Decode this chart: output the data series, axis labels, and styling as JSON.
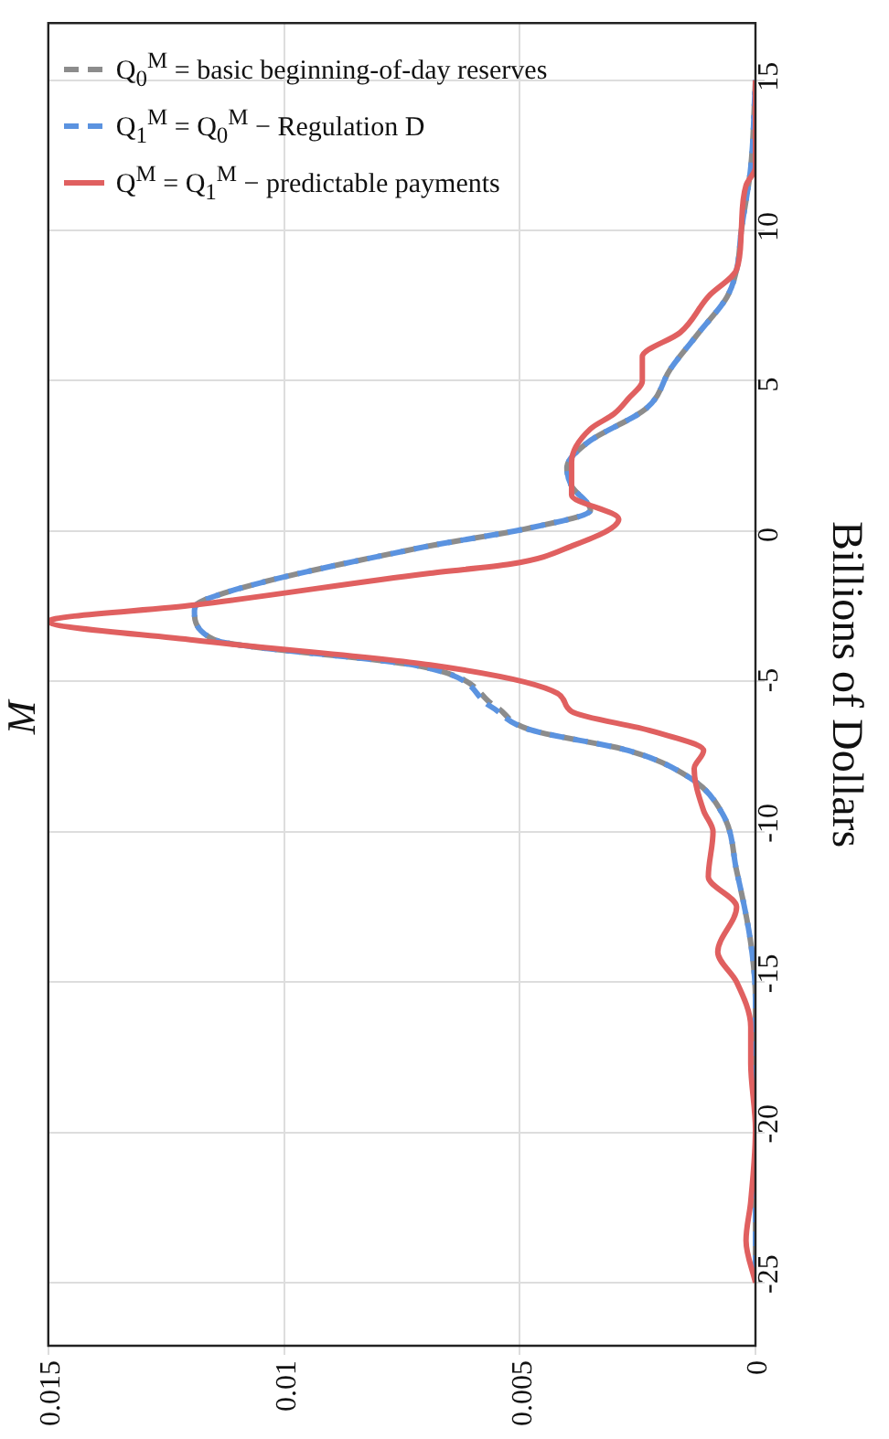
{
  "chart_data": {
    "type": "line",
    "title": "M",
    "ylabel": "Billions of Dollars",
    "ylim": [
      -27.1,
      16.9
    ],
    "yticks": [
      -25,
      -20,
      -15,
      -10,
      -5,
      0,
      5,
      10,
      15
    ],
    "xlim": [
      0.015,
      0
    ],
    "xticks": [
      0.015,
      0.01,
      0.005,
      0
    ],
    "grid": true,
    "legend": "top left",
    "marker": "none",
    "series": [
      {
        "name": "Q$_{0}$$^{M}$ = basic beginning-of-day reserves",
        "color": "#8c8c8c",
        "line_style": "dashed",
        "values": [
          -25,
          -15.6,
          -13.7,
          -11.3,
          -9.4,
          -8.2,
          -7.3,
          -6.6,
          -5.85,
          -4.5,
          -3.6,
          -2.65,
          -2.3,
          -0.55,
          0.1,
          0.7,
          1.5,
          2.1,
          2.9,
          4.1,
          5.4,
          6.6,
          7.8,
          8.7,
          10,
          12.1,
          15
        ],
        "x": [
          0,
          0,
          0.0001,
          0.0004,
          0.0007,
          0.0014,
          0.0027,
          0.0048,
          0.0055,
          0.0071,
          0.0115,
          0.0119,
          0.0117,
          0.0071,
          0.0048,
          0.0035,
          0.0039,
          0.004,
          0.0036,
          0.0023,
          0.0018,
          0.0012,
          0.0006,
          0.0004,
          0.0003,
          0.0001,
          0
        ]
      },
      {
        "name": "Q$_{1}$$^{M}$ = Q$_{0}$$^{M}$ − Regulation D",
        "color": "#5b93e0",
        "line_style": "dashed",
        "values": [
          -25,
          -15.6,
          -13.7,
          -11.3,
          -9.4,
          -8.2,
          -7.3,
          -6.6,
          -5.85,
          -4.5,
          -3.6,
          -2.65,
          -2.3,
          -0.55,
          0.1,
          0.7,
          1.5,
          2.1,
          2.9,
          4.1,
          5.4,
          6.6,
          7.8,
          8.7,
          10,
          12.1,
          15
        ],
        "x": [
          0,
          0,
          0.0001,
          0.0004,
          0.0007,
          0.0014,
          0.0027,
          0.0048,
          0.0056,
          0.0071,
          0.0115,
          0.0119,
          0.0117,
          0.0071,
          0.0048,
          0.0035,
          0.0039,
          0.004,
          0.0036,
          0.0023,
          0.0018,
          0.0012,
          0.0006,
          0.0004,
          0.0003,
          0.0001,
          0
        ]
      },
      {
        "name": "Q$^{M}$ = Q$_{1}$$^{M}$ − predictable payments",
        "color": "#e06060",
        "line_style": "solid",
        "values": [
          -25,
          -23.6,
          -22.3,
          -19.9,
          -17.7,
          -16.5,
          -15,
          -14,
          -12.5,
          -11.5,
          -10,
          -9.3,
          -7.9,
          -7.3,
          -6.65,
          -6,
          -5.4,
          -4.45,
          -3.63,
          -3,
          -2.46,
          -1.4,
          -1.1,
          -0.5,
          0.4,
          1.2,
          2.3,
          3.4,
          3.9,
          4.4,
          5,
          5.8,
          6.6,
          7.8,
          8.7,
          10,
          11.5,
          12.1,
          15
        ],
        "x": [
          0,
          0.0002,
          0.0001,
          0,
          0.0001,
          0.0001,
          0.0004,
          0.0008,
          0.0004,
          0.001,
          0.0009,
          0.0011,
          0.0013,
          0.0011,
          0.0022,
          0.0039,
          0.0042,
          0.0069,
          0.0119,
          0.015,
          0.0119,
          0.0069,
          0.0052,
          0.0039,
          0.0029,
          0.0039,
          0.0039,
          0.0035,
          0.003,
          0.0027,
          0.0024,
          0.0024,
          0.0016,
          0.001,
          0.0004,
          0.0003,
          0.0002,
          0,
          0
        ]
      }
    ]
  }
}
